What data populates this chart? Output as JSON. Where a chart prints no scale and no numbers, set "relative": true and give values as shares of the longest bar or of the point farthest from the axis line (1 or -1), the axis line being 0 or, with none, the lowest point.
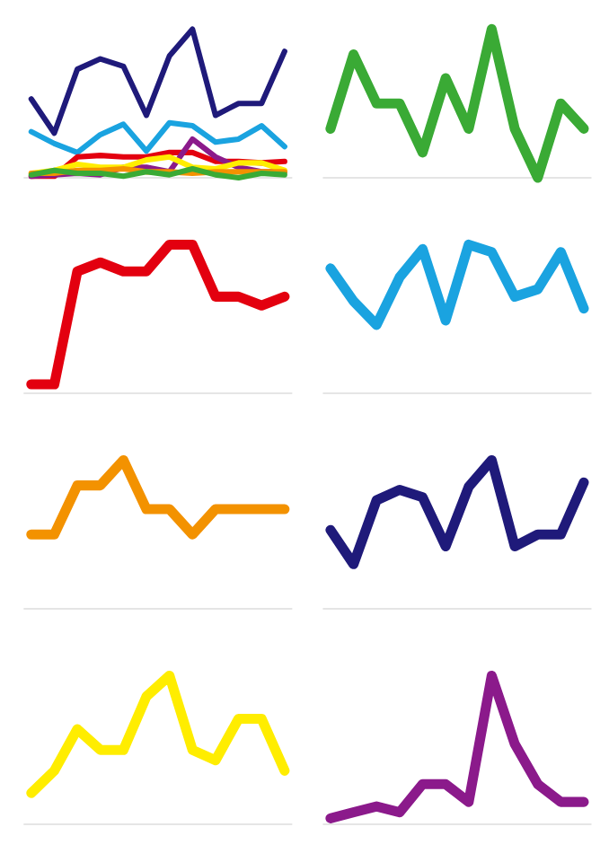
{
  "chart_data": [
    {
      "type": "line",
      "relative": true,
      "categories": [
        null,
        null,
        null,
        null,
        null,
        null,
        null,
        null,
        null,
        null,
        null,
        null
      ],
      "series": [
        {
          "color": "#1f1a7a",
          "values": [
            0.53,
            0.3,
            0.73,
            0.8,
            0.75,
            0.42,
            0.82,
            1.0,
            0.42,
            0.5,
            0.5,
            0.85
          ]
        },
        {
          "color": "#1aa3e0",
          "values": [
            0.31,
            0.23,
            0.17,
            0.29,
            0.36,
            0.18,
            0.37,
            0.35,
            0.24,
            0.26,
            0.35,
            0.21
          ]
        },
        {
          "color": "#e3000f",
          "values": [
            0.01,
            0.01,
            0.14,
            0.15,
            0.14,
            0.14,
            0.17,
            0.17,
            0.11,
            0.11,
            0.1,
            0.11
          ]
        },
        {
          "color": "#8b1a8b",
          "values": [
            0.01,
            0.02,
            0.03,
            0.02,
            0.07,
            0.07,
            0.04,
            0.26,
            0.14,
            0.07,
            0.04,
            0.04
          ]
        },
        {
          "color": "#ffed00",
          "values": [
            0.03,
            0.05,
            0.09,
            0.07,
            0.07,
            0.12,
            0.14,
            0.07,
            0.06,
            0.1,
            0.1,
            0.05
          ]
        },
        {
          "color": "#f39200",
          "values": [
            0.03,
            0.03,
            0.05,
            0.05,
            0.06,
            0.04,
            0.04,
            0.03,
            0.04,
            0.04,
            0.04,
            0.04
          ]
        },
        {
          "color": "#3aaa35",
          "values": [
            0.02,
            0.05,
            0.03,
            0.03,
            0.01,
            0.04,
            0.02,
            0.06,
            0.02,
            0.0,
            0.03,
            0.02
          ]
        }
      ]
    },
    {
      "type": "line",
      "relative": true,
      "categories": [
        null,
        null,
        null,
        null,
        null,
        null,
        null,
        null,
        null,
        null,
        null,
        null
      ],
      "series": [
        {
          "color": "#3aaa35",
          "values": [
            0.33,
            0.83,
            0.5,
            0.5,
            0.17,
            0.67,
            0.33,
            1.0,
            0.33,
            0.0,
            0.5,
            0.33
          ]
        }
      ]
    },
    {
      "type": "line",
      "relative": true,
      "categories": [
        null,
        null,
        null,
        null,
        null,
        null,
        null,
        null,
        null,
        null,
        null,
        null
      ],
      "series": [
        {
          "color": "#e3000f",
          "values": [
            0.06,
            0.06,
            0.82,
            0.88,
            0.82,
            0.82,
            1.0,
            1.0,
            0.65,
            0.65,
            0.59,
            0.65
          ]
        }
      ]
    },
    {
      "type": "line",
      "relative": true,
      "categories": [
        null,
        null,
        null,
        null,
        null,
        null,
        null,
        null,
        null,
        null,
        null,
        null
      ],
      "series": [
        {
          "color": "#1aa3e0",
          "values": [
            0.84,
            0.62,
            0.46,
            0.78,
            0.97,
            0.49,
            1.0,
            0.95,
            0.65,
            0.7,
            0.95,
            0.57
          ]
        }
      ]
    },
    {
      "type": "line",
      "relative": true,
      "categories": [
        null,
        null,
        null,
        null,
        null,
        null,
        null,
        null,
        null,
        null,
        null,
        null
      ],
      "series": [
        {
          "color": "#f39200",
          "values": [
            0.5,
            0.5,
            0.83,
            0.83,
            1.0,
            0.67,
            0.67,
            0.5,
            0.67,
            0.67,
            0.67,
            0.67
          ]
        }
      ]
    },
    {
      "type": "line",
      "relative": true,
      "categories": [
        null,
        null,
        null,
        null,
        null,
        null,
        null,
        null,
        null,
        null,
        null,
        null
      ],
      "series": [
        {
          "color": "#1f1a7a",
          "values": [
            0.53,
            0.3,
            0.73,
            0.8,
            0.75,
            0.42,
            0.82,
            1.0,
            0.42,
            0.5,
            0.5,
            0.85
          ]
        }
      ]
    },
    {
      "type": "line",
      "relative": true,
      "categories": [
        null,
        null,
        null,
        null,
        null,
        null,
        null,
        null,
        null,
        null,
        null,
        null
      ],
      "series": [
        {
          "color": "#ffed00",
          "values": [
            0.21,
            0.36,
            0.64,
            0.5,
            0.5,
            0.86,
            1.0,
            0.5,
            0.43,
            0.71,
            0.71,
            0.36
          ]
        }
      ]
    },
    {
      "type": "line",
      "relative": true,
      "categories": [
        null,
        null,
        null,
        null,
        null,
        null,
        null,
        null,
        null,
        null,
        null,
        null
      ],
      "series": [
        {
          "color": "#8b1a8b",
          "values": [
            0.04,
            0.08,
            0.12,
            0.08,
            0.27,
            0.27,
            0.15,
            1.0,
            0.54,
            0.27,
            0.15,
            0.15
          ]
        }
      ]
    }
  ]
}
